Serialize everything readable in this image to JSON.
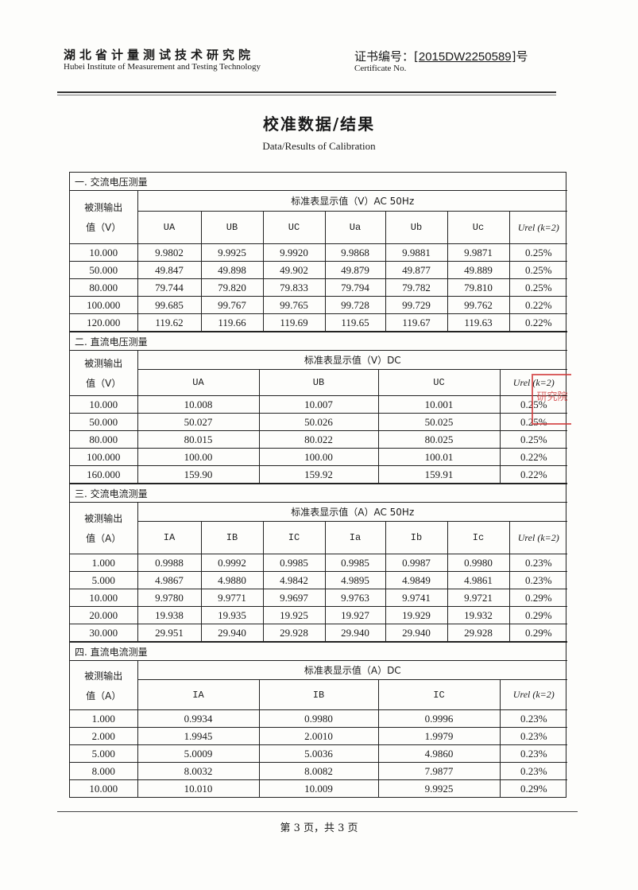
{
  "header": {
    "org_cn": "湖北省计量测试技术研究院",
    "org_en": "Hubei Institute of Measurement and Testing Technology",
    "cert_label_cn": "证书编号：",
    "cert_number": "2015DW2250589",
    "cert_suffix": "号",
    "cert_label_en": "Certificate No."
  },
  "title": "校准数据/结果",
  "subtitle": "Data/Results of Calibration",
  "stamp_text": "研究院",
  "sections": [
    {
      "title": "一. 交流电压测量",
      "row_header": [
        "被测输出",
        "值（V）"
      ],
      "group_header": "标准表显示值（V）AC 50Hz",
      "columns": [
        "UA",
        "UB",
        "UC",
        "Ua",
        "Ub",
        "Uc"
      ],
      "uncertainty_header": "Urel (k=2)",
      "rows": [
        [
          "10.000",
          "9.9802",
          "9.9925",
          "9.9920",
          "9.9868",
          "9.9881",
          "9.9871",
          "0.25%"
        ],
        [
          "50.000",
          "49.847",
          "49.898",
          "49.902",
          "49.879",
          "49.877",
          "49.889",
          "0.25%"
        ],
        [
          "80.000",
          "79.744",
          "79.820",
          "79.833",
          "79.794",
          "79.782",
          "79.810",
          "0.25%"
        ],
        [
          "100.000",
          "99.685",
          "99.767",
          "99.765",
          "99.728",
          "99.729",
          "99.762",
          "0.22%"
        ],
        [
          "120.000",
          "119.62",
          "119.66",
          "119.69",
          "119.65",
          "119.67",
          "119.63",
          "0.22%"
        ]
      ]
    },
    {
      "title": "二. 直流电压测量",
      "row_header": [
        "被测输出",
        "值（V）"
      ],
      "group_header": "标准表显示值（V）DC",
      "columns": [
        "UA",
        "UB",
        "UC"
      ],
      "uncertainty_header": "Urel (k=2)",
      "rows": [
        [
          "10.000",
          "10.008",
          "10.007",
          "10.001",
          "0.25%"
        ],
        [
          "50.000",
          "50.027",
          "50.026",
          "50.025",
          "0.25%"
        ],
        [
          "80.000",
          "80.015",
          "80.022",
          "80.025",
          "0.25%"
        ],
        [
          "100.000",
          "100.00",
          "100.00",
          "100.01",
          "0.22%"
        ],
        [
          "160.000",
          "159.90",
          "159.92",
          "159.91",
          "0.22%"
        ]
      ]
    },
    {
      "title": "三. 交流电流测量",
      "row_header": [
        "被测输出",
        "值（A）"
      ],
      "group_header": "标准表显示值（A）AC 50Hz",
      "columns": [
        "IA",
        "IB",
        "IC",
        "Ia",
        "Ib",
        "Ic"
      ],
      "uncertainty_header": "Urel (k=2)",
      "rows": [
        [
          "1.000",
          "0.9988",
          "0.9992",
          "0.9985",
          "0.9985",
          "0.9987",
          "0.9980",
          "0.23%"
        ],
        [
          "5.000",
          "4.9867",
          "4.9880",
          "4.9842",
          "4.9895",
          "4.9849",
          "4.9861",
          "0.23%"
        ],
        [
          "10.000",
          "9.9780",
          "9.9771",
          "9.9697",
          "9.9763",
          "9.9741",
          "9.9721",
          "0.29%"
        ],
        [
          "20.000",
          "19.938",
          "19.935",
          "19.925",
          "19.927",
          "19.929",
          "19.932",
          "0.29%"
        ],
        [
          "30.000",
          "29.951",
          "29.940",
          "29.928",
          "29.940",
          "29.940",
          "29.928",
          "0.29%"
        ]
      ]
    },
    {
      "title": "四. 直流电流测量",
      "row_header": [
        "被测输出",
        "值（A）"
      ],
      "group_header": "标准表显示值（A）DC",
      "columns": [
        "IA",
        "IB",
        "IC"
      ],
      "uncertainty_header": "Urel (k=2)",
      "rows": [
        [
          "1.000",
          "0.9934",
          "0.9980",
          "0.9996",
          "0.23%"
        ],
        [
          "2.000",
          "1.9945",
          "2.0010",
          "1.9979",
          "0.23%"
        ],
        [
          "5.000",
          "5.0009",
          "5.0036",
          "4.9860",
          "0.23%"
        ],
        [
          "8.000",
          "8.0032",
          "8.0082",
          "7.9877",
          "0.23%"
        ],
        [
          "10.000",
          "10.010",
          "10.009",
          "9.9925",
          "0.29%"
        ]
      ]
    }
  ],
  "footer": "第 3 页，共 3 页"
}
